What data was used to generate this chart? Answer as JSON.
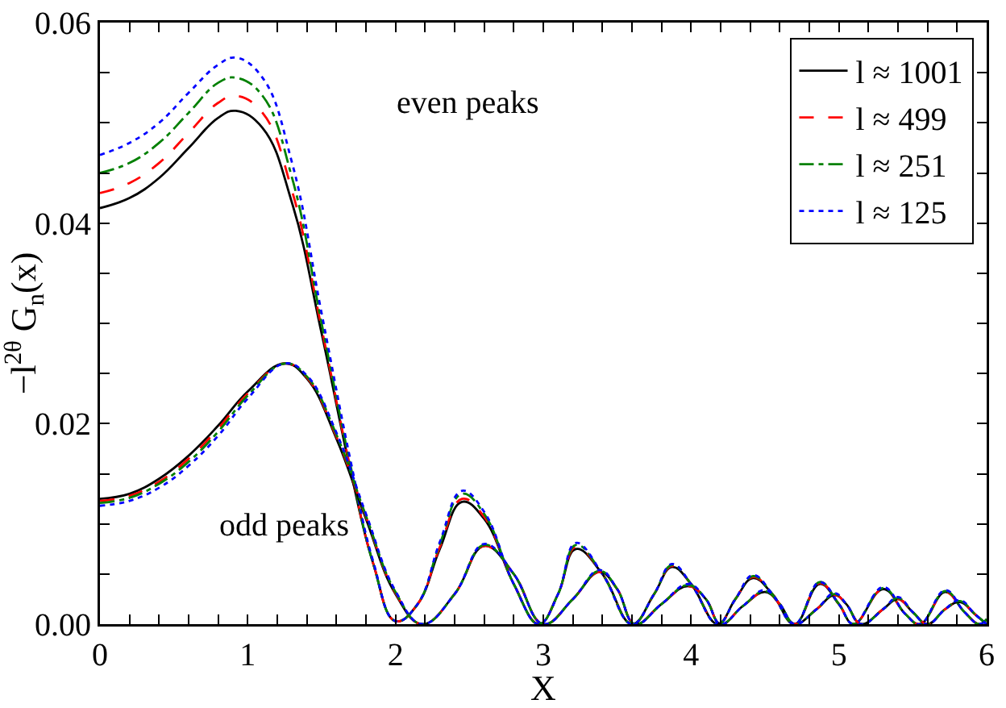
{
  "chart_data": {
    "type": "line",
    "xlabel": "X",
    "ylabel": "−l$^{2θ}$ G$_{n}$(x)",
    "xlim": [
      0,
      6
    ],
    "ylim": [
      0,
      0.06
    ],
    "xticks": [
      0,
      {
        "value": 0.2,
        "label": null
      },
      {
        "value": 0.4,
        "label": null
      },
      {
        "value": 0.6,
        "label": null
      },
      {
        "value": 0.8,
        "label": null
      },
      1,
      {
        "value": 1.2,
        "label": null
      },
      {
        "value": 1.4,
        "label": null
      },
      {
        "value": 1.6,
        "label": null
      },
      {
        "value": 1.8,
        "label": null
      },
      2,
      {
        "value": 2.2,
        "label": null
      },
      {
        "value": 2.4,
        "label": null
      },
      {
        "value": 2.6,
        "label": null
      },
      {
        "value": 2.8,
        "label": null
      },
      3,
      {
        "value": 3.2,
        "label": null
      },
      {
        "value": 3.4,
        "label": null
      },
      {
        "value": 3.6,
        "label": null
      },
      {
        "value": 3.8,
        "label": null
      },
      4,
      {
        "value": 4.2,
        "label": null
      },
      {
        "value": 4.4,
        "label": null
      },
      {
        "value": 4.6,
        "label": null
      },
      {
        "value": 4.8,
        "label": null
      },
      5,
      {
        "value": 5.2,
        "label": null
      },
      {
        "value": 5.4,
        "label": null
      },
      {
        "value": 5.6,
        "label": null
      },
      {
        "value": 5.8,
        "label": null
      },
      6
    ],
    "yticks": [
      {
        "value": 0,
        "label": "0.00"
      },
      {
        "value": 0.005,
        "label": null
      },
      {
        "value": 0.01,
        "label": null
      },
      {
        "value": 0.015,
        "label": null
      },
      {
        "value": 0.02,
        "label": "0.02"
      },
      {
        "value": 0.025,
        "label": null
      },
      {
        "value": 0.03,
        "label": null
      },
      {
        "value": 0.035,
        "label": null
      },
      {
        "value": 0.04,
        "label": "0.04"
      },
      {
        "value": 0.045,
        "label": null
      },
      {
        "value": 0.05,
        "label": null
      },
      {
        "value": 0.055,
        "label": null
      },
      {
        "value": 0.06,
        "label": "0.06"
      }
    ],
    "grid": false,
    "legend": "top right",
    "marker": "none",
    "annotations": [
      "even peaks",
      "odd peaks"
    ],
    "series": [
      {
        "name": "l ≈ 1001",
        "color": "#000000",
        "line_style": "solid",
        "x": [
          0,
          0.2,
          0.4,
          0.6,
          0.8,
          0.92,
          1.1,
          1.3,
          1.5,
          1.7,
          1.85,
          2.0,
          2.15,
          2.3,
          2.45,
          2.6,
          2.8,
          2.97,
          3.1,
          3.22,
          3.4,
          3.6,
          3.75,
          3.87,
          4.0,
          4.18,
          4.3,
          4.42,
          4.55,
          4.7,
          4.87,
          5.0,
          5.1,
          5.3,
          5.45,
          5.55,
          5.72,
          5.85,
          5.95,
          6.0
        ],
        "values": [
          0.0415,
          0.0425,
          0.0445,
          0.0475,
          0.0505,
          0.0512,
          0.0495,
          0.042,
          0.029,
          0.015,
          0.006,
          0.0003,
          0.002,
          0.0075,
          0.0122,
          0.0105,
          0.004,
          0.0,
          0.003,
          0.0075,
          0.005,
          0.0,
          0.003,
          0.0057,
          0.004,
          0.0,
          0.0025,
          0.0046,
          0.003,
          0.0,
          0.004,
          0.002,
          0.0,
          0.0035,
          0.001,
          0.0,
          0.0032,
          0.0012,
          0.0,
          0.0005
        ]
      },
      {
        "name": "l ≈ 499",
        "color": "#ff0000",
        "line_style": "dashed",
        "x": [
          0,
          0.2,
          0.4,
          0.6,
          0.8,
          0.92,
          1.1,
          1.3,
          1.5,
          1.7,
          1.85,
          2.0,
          2.15,
          2.3,
          2.45,
          2.6,
          2.8,
          2.97,
          3.1,
          3.22,
          3.4,
          3.6,
          3.75,
          3.87,
          4.0,
          4.18,
          4.3,
          4.42,
          4.55,
          4.7,
          4.87,
          5.0,
          5.1,
          5.3,
          5.45,
          5.55,
          5.72,
          5.85,
          5.95,
          6.0
        ],
        "values": [
          0.043,
          0.044,
          0.046,
          0.049,
          0.052,
          0.0527,
          0.051,
          0.0432,
          0.0295,
          0.0152,
          0.006,
          0.0003,
          0.002,
          0.0077,
          0.0125,
          0.0107,
          0.004,
          0.0,
          0.003,
          0.0077,
          0.005,
          0.0,
          0.003,
          0.0058,
          0.004,
          0.0,
          0.0025,
          0.0047,
          0.003,
          0.0,
          0.0041,
          0.002,
          0.0,
          0.0035,
          0.001,
          0.0,
          0.0032,
          0.0012,
          0.0,
          0.0005
        ]
      },
      {
        "name": "l ≈ 251",
        "color": "#008000",
        "line_style": "dashdot",
        "x": [
          0,
          0.2,
          0.4,
          0.6,
          0.8,
          0.92,
          1.1,
          1.3,
          1.5,
          1.7,
          1.85,
          2.0,
          2.15,
          2.3,
          2.45,
          2.6,
          2.8,
          2.97,
          3.1,
          3.22,
          3.4,
          3.6,
          3.75,
          3.87,
          4.0,
          4.18,
          4.3,
          4.42,
          4.55,
          4.7,
          4.87,
          5.0,
          5.1,
          5.3,
          5.45,
          5.55,
          5.72,
          5.85,
          5.95,
          6.0
        ],
        "values": [
          0.045,
          0.046,
          0.048,
          0.051,
          0.054,
          0.0545,
          0.0527,
          0.0445,
          0.03,
          0.0155,
          0.006,
          0.0003,
          0.002,
          0.008,
          0.013,
          0.011,
          0.004,
          0.0,
          0.003,
          0.0079,
          0.005,
          0.0,
          0.003,
          0.0059,
          0.004,
          0.0,
          0.0025,
          0.0048,
          0.003,
          0.0,
          0.0042,
          0.002,
          0.0,
          0.0036,
          0.001,
          0.0,
          0.0033,
          0.0012,
          0.0,
          0.0005
        ]
      },
      {
        "name": "l ≈ 125",
        "color": "#0000ff",
        "line_style": "dotted",
        "x": [
          0,
          0.2,
          0.4,
          0.6,
          0.8,
          0.92,
          1.1,
          1.3,
          1.5,
          1.7,
          1.85,
          2.0,
          2.15,
          2.3,
          2.45,
          2.6,
          2.8,
          2.97,
          3.1,
          3.22,
          3.4,
          3.6,
          3.75,
          3.87,
          4.0,
          4.18,
          4.3,
          4.42,
          4.55,
          4.7,
          4.87,
          5.0,
          5.1,
          5.3,
          5.45,
          5.55,
          5.72,
          5.85,
          5.95,
          6.0
        ],
        "values": [
          0.0468,
          0.048,
          0.05,
          0.053,
          0.0558,
          0.0565,
          0.0545,
          0.046,
          0.031,
          0.016,
          0.0062,
          0.0003,
          0.002,
          0.0082,
          0.0133,
          0.0112,
          0.004,
          0.0,
          0.003,
          0.0081,
          0.005,
          0.0,
          0.003,
          0.006,
          0.004,
          0.0,
          0.0025,
          0.0049,
          0.003,
          0.0,
          0.0042,
          0.002,
          0.0,
          0.0037,
          0.001,
          0.0,
          0.0034,
          0.0012,
          0.0,
          0.0005
        ]
      },
      {
        "color": "#000000",
        "line_style": "solid",
        "x": [
          0,
          0.2,
          0.4,
          0.6,
          0.8,
          1.0,
          1.25,
          1.4,
          1.6,
          1.8,
          2.0,
          2.18,
          2.4,
          2.6,
          2.8,
          3.0,
          3.2,
          3.38,
          3.5,
          3.62,
          3.8,
          3.98,
          4.1,
          4.2,
          4.35,
          4.5,
          4.6,
          4.7,
          4.85,
          4.97,
          5.05,
          5.15,
          5.3,
          5.4,
          5.5,
          5.6,
          5.72,
          5.82,
          5.92,
          6.0
        ],
        "values": [
          0.0125,
          0.013,
          0.0145,
          0.0168,
          0.0198,
          0.0232,
          0.026,
          0.0245,
          0.0185,
          0.0105,
          0.003,
          0.0,
          0.003,
          0.0078,
          0.005,
          0.0,
          0.0025,
          0.0052,
          0.0035,
          0.0,
          0.002,
          0.0038,
          0.0025,
          0.0,
          0.0018,
          0.0032,
          0.002,
          0.0,
          0.0015,
          0.0029,
          0.002,
          0.0,
          0.0015,
          0.0025,
          0.0012,
          0.0,
          0.0015,
          0.0022,
          0.001,
          0.0
        ]
      },
      {
        "color": "#ff0000",
        "line_style": "dashed",
        "x": [
          0,
          0.2,
          0.4,
          0.6,
          0.8,
          1.0,
          1.25,
          1.4,
          1.6,
          1.8,
          2.0,
          2.18,
          2.4,
          2.6,
          2.8,
          3.0,
          3.2,
          3.38,
          3.5,
          3.62,
          3.8,
          3.98,
          4.1,
          4.2,
          4.35,
          4.5,
          4.6,
          4.7,
          4.85,
          4.97,
          5.05,
          5.15,
          5.3,
          5.4,
          5.5,
          5.6,
          5.72,
          5.82,
          5.92,
          6.0
        ],
        "values": [
          0.0123,
          0.0128,
          0.0142,
          0.0165,
          0.0195,
          0.023,
          0.026,
          0.0246,
          0.0187,
          0.0107,
          0.0031,
          0.0,
          0.003,
          0.0078,
          0.005,
          0.0,
          0.0025,
          0.0052,
          0.0035,
          0.0,
          0.002,
          0.0038,
          0.0025,
          0.0,
          0.0018,
          0.0032,
          0.002,
          0.0,
          0.0015,
          0.0029,
          0.002,
          0.0,
          0.0015,
          0.0025,
          0.0012,
          0.0,
          0.0015,
          0.0022,
          0.001,
          0.0
        ]
      },
      {
        "color": "#008000",
        "line_style": "dashdot",
        "x": [
          0,
          0.2,
          0.4,
          0.6,
          0.8,
          1.0,
          1.25,
          1.4,
          1.6,
          1.8,
          2.0,
          2.18,
          2.4,
          2.6,
          2.8,
          3.0,
          3.2,
          3.38,
          3.5,
          3.62,
          3.8,
          3.98,
          4.1,
          4.2,
          4.35,
          4.5,
          4.6,
          4.7,
          4.85,
          4.97,
          5.05,
          5.15,
          5.3,
          5.4,
          5.5,
          5.6,
          5.72,
          5.82,
          5.92,
          6.0
        ],
        "values": [
          0.0121,
          0.0126,
          0.014,
          0.0162,
          0.0192,
          0.0228,
          0.026,
          0.0247,
          0.0189,
          0.0108,
          0.0032,
          0.0,
          0.003,
          0.0079,
          0.005,
          0.0,
          0.0025,
          0.0053,
          0.0035,
          0.0,
          0.002,
          0.0039,
          0.0025,
          0.0,
          0.0018,
          0.0033,
          0.002,
          0.0,
          0.0015,
          0.003,
          0.002,
          0.0,
          0.0015,
          0.0026,
          0.0012,
          0.0,
          0.0015,
          0.0023,
          0.001,
          0.0
        ]
      },
      {
        "color": "#0000ff",
        "line_style": "dotted",
        "x": [
          0,
          0.2,
          0.4,
          0.6,
          0.8,
          1.0,
          1.25,
          1.4,
          1.6,
          1.8,
          2.0,
          2.18,
          2.4,
          2.6,
          2.8,
          3.0,
          3.2,
          3.38,
          3.5,
          3.62,
          3.8,
          3.98,
          4.1,
          4.2,
          4.35,
          4.5,
          4.6,
          4.7,
          4.85,
          4.97,
          5.05,
          5.15,
          5.3,
          5.4,
          5.5,
          5.6,
          5.72,
          5.82,
          5.92,
          6.0
        ],
        "values": [
          0.0118,
          0.0123,
          0.0136,
          0.0158,
          0.0188,
          0.0225,
          0.026,
          0.0248,
          0.0191,
          0.011,
          0.0033,
          0.0,
          0.003,
          0.008,
          0.005,
          0.0,
          0.0025,
          0.0054,
          0.0035,
          0.0,
          0.002,
          0.004,
          0.0025,
          0.0,
          0.0018,
          0.0034,
          0.002,
          0.0,
          0.0015,
          0.0031,
          0.002,
          0.0,
          0.0015,
          0.0027,
          0.0012,
          0.0,
          0.0015,
          0.0024,
          0.001,
          0.0
        ]
      }
    ]
  }
}
